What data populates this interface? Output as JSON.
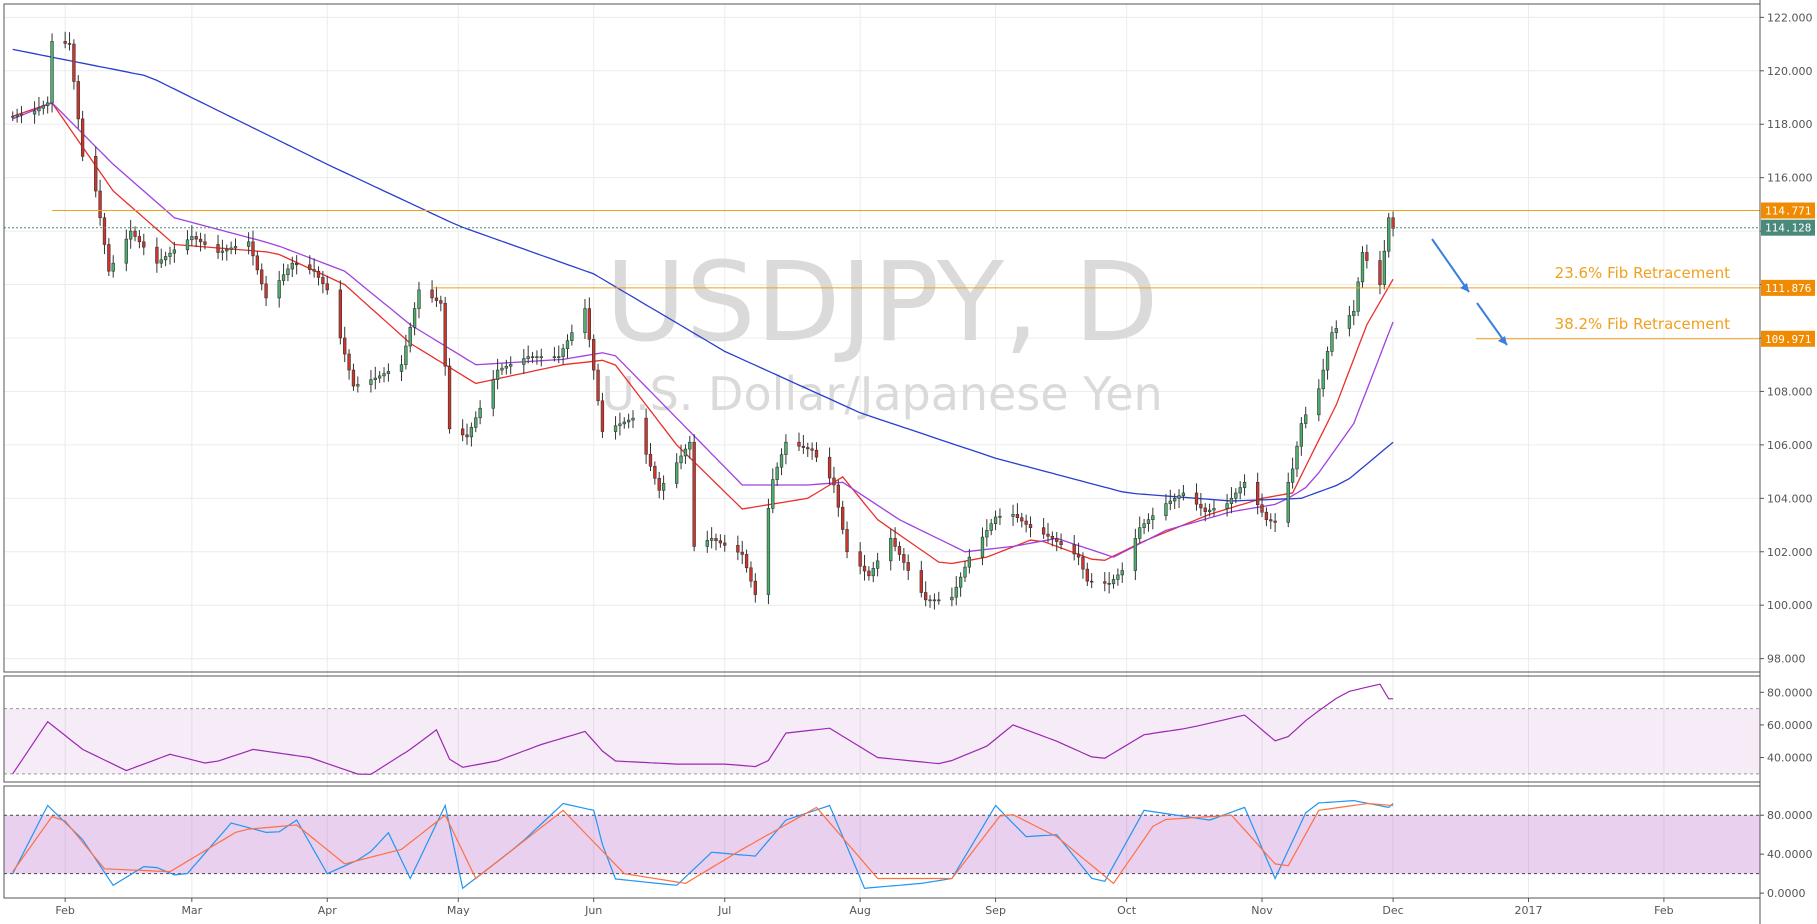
{
  "chart_data": [
    {
      "type": "candlestick",
      "watermark": {
        "symbol": "USDJPY, D",
        "description": "U.S. Dollar/Japanese Yen"
      },
      "ylim": [
        97.5,
        122.5
      ],
      "y_ticks": [
        "122.000",
        "120.000",
        "118.000",
        "116.000",
        "114.000",
        "112.000",
        "110.000",
        "108.000",
        "106.000",
        "104.000",
        "102.000",
        "100.000",
        "98.000"
      ],
      "x_ticks": [
        "Feb",
        "Mar",
        "Apr",
        "May",
        "Jun",
        "Jul",
        "Aug",
        "Sep",
        "Oct",
        "Nov",
        "Dec",
        "2017",
        "Feb"
      ],
      "price_tags": {
        "resistance": "114.771",
        "current": "114.128",
        "fib_23_6": "111.876",
        "fib_38_2": "109.971"
      },
      "levels": [
        {
          "name": "resistance",
          "value": 114.771,
          "label": ""
        },
        {
          "name": "fib_23_6",
          "value": 111.876,
          "label": "23.6% Fib Retracement"
        },
        {
          "name": "fib_38_2",
          "value": 109.971,
          "label": "38.2% Fib Retracement"
        }
      ],
      "close_keys": [
        [
          "2016-01-20",
          118.3
        ],
        [
          "2016-01-25",
          118.5
        ],
        [
          "2016-01-28",
          118.8
        ],
        [
          "2016-01-29",
          121.1
        ],
        [
          "2016-02-02",
          121.0
        ],
        [
          "2016-02-05",
          116.8
        ],
        [
          "2016-02-08",
          115.5
        ],
        [
          "2016-02-11",
          112.5
        ],
        [
          "2016-02-16",
          114.0
        ],
        [
          "2016-02-22",
          112.8
        ],
        [
          "2016-03-01",
          113.8
        ],
        [
          "2016-03-07",
          113.2
        ],
        [
          "2016-03-14",
          113.6
        ],
        [
          "2016-03-18",
          111.5
        ],
        [
          "2016-03-24",
          112.8
        ],
        [
          "2016-03-29",
          112.5
        ],
        [
          "2016-04-01",
          111.8
        ],
        [
          "2016-04-07",
          108.2
        ],
        [
          "2016-04-12",
          108.5
        ],
        [
          "2016-04-18",
          109.0
        ],
        [
          "2016-04-22",
          111.8
        ],
        [
          "2016-04-27",
          111.3
        ],
        [
          "2016-04-29",
          106.6
        ],
        [
          "2016-05-03",
          106.3
        ],
        [
          "2016-05-10",
          108.8
        ],
        [
          "2016-05-17",
          109.3
        ],
        [
          "2016-05-24",
          109.3
        ],
        [
          "2016-05-30",
          111.1
        ],
        [
          "2016-06-03",
          106.5
        ],
        [
          "2016-06-10",
          107.0
        ],
        [
          "2016-06-16",
          104.3
        ],
        [
          "2016-06-23",
          106.1
        ],
        [
          "2016-06-24",
          102.2
        ],
        [
          "2016-06-28",
          102.5
        ],
        [
          "2016-07-05",
          101.9
        ],
        [
          "2016-07-08",
          100.4
        ],
        [
          "2016-07-12",
          104.7
        ],
        [
          "2016-07-15",
          106.1
        ],
        [
          "2016-07-21",
          105.8
        ],
        [
          "2016-07-26",
          104.5
        ],
        [
          "2016-07-29",
          102.0
        ],
        [
          "2016-08-03",
          101.1
        ],
        [
          "2016-08-08",
          102.5
        ],
        [
          "2016-08-12",
          101.3
        ],
        [
          "2016-08-16",
          100.2
        ],
        [
          "2016-08-19",
          100.2
        ],
        [
          "2016-08-22",
          100.3
        ],
        [
          "2016-08-26",
          101.8
        ],
        [
          "2016-09-01",
          103.3
        ],
        [
          "2016-09-05",
          103.4
        ],
        [
          "2016-09-09",
          102.9
        ],
        [
          "2016-09-14",
          102.5
        ],
        [
          "2016-09-20",
          101.8
        ],
        [
          "2016-09-22",
          100.9
        ],
        [
          "2016-09-27",
          100.8
        ],
        [
          "2016-09-30",
          101.3
        ],
        [
          "2016-10-04",
          102.9
        ],
        [
          "2016-10-10",
          103.8
        ],
        [
          "2016-10-14",
          104.2
        ],
        [
          "2016-10-19",
          103.5
        ],
        [
          "2016-10-24",
          103.8
        ],
        [
          "2016-10-28",
          104.6
        ],
        [
          "2016-11-02",
          103.2
        ],
        [
          "2016-11-04",
          103.1
        ],
        [
          "2016-11-08",
          105.1
        ],
        [
          "2016-11-10",
          106.8
        ],
        [
          "2016-11-14",
          108.1
        ],
        [
          "2016-11-17",
          110.2
        ],
        [
          "2016-11-22",
          111.0
        ],
        [
          "2016-11-24",
          113.2
        ],
        [
          "2016-11-28",
          112.0
        ],
        [
          "2016-11-30",
          114.5
        ],
        [
          "2016-12-01",
          114.1
        ]
      ],
      "moving_averages": [
        {
          "name": "ema_fast",
          "color": "#e8302c",
          "keys": [
            [
              "2016-01-20",
              118.3
            ],
            [
              "2016-01-29",
              118.8
            ],
            [
              "2016-02-12",
              115.5
            ],
            [
              "2016-02-26",
              113.5
            ],
            [
              "2016-03-20",
              113.2
            ],
            [
              "2016-04-05",
              112.0
            ],
            [
              "2016-04-20",
              109.8
            ],
            [
              "2016-05-05",
              108.3
            ],
            [
              "2016-05-25",
              109.0
            ],
            [
              "2016-06-05",
              109.2
            ],
            [
              "2016-06-20",
              106.0
            ],
            [
              "2016-07-05",
              103.6
            ],
            [
              "2016-07-20",
              104.0
            ],
            [
              "2016-07-28",
              104.8
            ],
            [
              "2016-08-05",
              103.2
            ],
            [
              "2016-08-20",
              101.5
            ],
            [
              "2016-08-30",
              101.8
            ],
            [
              "2016-09-10",
              102.5
            ],
            [
              "2016-09-25",
              101.6
            ],
            [
              "2016-10-05",
              102.4
            ],
            [
              "2016-10-20",
              103.4
            ],
            [
              "2016-11-01",
              104.0
            ],
            [
              "2016-11-08",
              104.2
            ],
            [
              "2016-11-18",
              107.5
            ],
            [
              "2016-11-25",
              110.5
            ],
            [
              "2016-12-01",
              112.2
            ]
          ]
        },
        {
          "name": "ema_mid",
          "color": "#a040e0",
          "keys": [
            [
              "2016-01-20",
              118.2
            ],
            [
              "2016-01-29",
              118.8
            ],
            [
              "2016-02-12",
              116.5
            ],
            [
              "2016-02-26",
              114.5
            ],
            [
              "2016-03-20",
              113.5
            ],
            [
              "2016-04-05",
              112.5
            ],
            [
              "2016-04-20",
              110.5
            ],
            [
              "2016-05-05",
              109.0
            ],
            [
              "2016-05-25",
              109.2
            ],
            [
              "2016-06-05",
              109.5
            ],
            [
              "2016-06-20",
              107.0
            ],
            [
              "2016-07-05",
              104.5
            ],
            [
              "2016-07-20",
              104.5
            ],
            [
              "2016-07-28",
              104.6
            ],
            [
              "2016-08-10",
              103.2
            ],
            [
              "2016-08-25",
              102.0
            ],
            [
              "2016-09-05",
              102.2
            ],
            [
              "2016-09-15",
              102.5
            ],
            [
              "2016-09-28",
              101.8
            ],
            [
              "2016-10-10",
              102.8
            ],
            [
              "2016-10-25",
              103.5
            ],
            [
              "2016-11-05",
              103.8
            ],
            [
              "2016-11-12",
              104.5
            ],
            [
              "2016-11-22",
              106.8
            ],
            [
              "2016-12-01",
              110.6
            ]
          ]
        },
        {
          "name": "sma_long",
          "color": "#2a3ecf",
          "keys": [
            [
              "2016-01-20",
              120.8
            ],
            [
              "2016-02-20",
              119.8
            ],
            [
              "2016-04-01",
              116.5
            ],
            [
              "2016-05-01",
              114.2
            ],
            [
              "2016-06-01",
              112.4
            ],
            [
              "2016-07-01",
              109.5
            ],
            [
              "2016-08-01",
              107.2
            ],
            [
              "2016-09-01",
              105.5
            ],
            [
              "2016-10-01",
              104.2
            ],
            [
              "2016-10-25",
              103.9
            ],
            [
              "2016-11-10",
              104.0
            ],
            [
              "2016-11-20",
              104.6
            ],
            [
              "2016-12-01",
              106.1
            ]
          ]
        }
      ]
    },
    {
      "type": "line",
      "ylim": [
        25,
        90
      ],
      "y_ticks": [
        "80.0000",
        "60.0000",
        "40.0000"
      ],
      "band": [
        30,
        70
      ],
      "color": "#9c27b0",
      "keys": [
        [
          "2016-01-20",
          30
        ],
        [
          "2016-01-28",
          62
        ],
        [
          "2016-02-05",
          45
        ],
        [
          "2016-02-15",
          32
        ],
        [
          "2016-02-25",
          42
        ],
        [
          "2016-03-05",
          36
        ],
        [
          "2016-03-15",
          45
        ],
        [
          "2016-03-28",
          40
        ],
        [
          "2016-04-10",
          28
        ],
        [
          "2016-04-20",
          45
        ],
        [
          "2016-04-26",
          57
        ],
        [
          "2016-04-30",
          33
        ],
        [
          "2016-05-10",
          38
        ],
        [
          "2016-05-20",
          48
        ],
        [
          "2016-05-30",
          56
        ],
        [
          "2016-06-05",
          38
        ],
        [
          "2016-06-20",
          36
        ],
        [
          "2016-07-01",
          36
        ],
        [
          "2016-07-10",
          34
        ],
        [
          "2016-07-15",
          55
        ],
        [
          "2016-07-25",
          58
        ],
        [
          "2016-08-05",
          40
        ],
        [
          "2016-08-20",
          36
        ],
        [
          "2016-08-30",
          47
        ],
        [
          "2016-09-05",
          60
        ],
        [
          "2016-09-15",
          50
        ],
        [
          "2016-09-25",
          38
        ],
        [
          "2016-10-05",
          54
        ],
        [
          "2016-10-15",
          58
        ],
        [
          "2016-10-28",
          66
        ],
        [
          "2016-11-05",
          48
        ],
        [
          "2016-11-12",
          65
        ],
        [
          "2016-11-20",
          80
        ],
        [
          "2016-11-28",
          85
        ],
        [
          "2016-11-30",
          76
        ],
        [
          "2016-12-01",
          76
        ]
      ]
    },
    {
      "type": "line",
      "ylim": [
        -5,
        110
      ],
      "y_ticks": [
        "80.0000",
        "40.0000",
        "0.0000"
      ],
      "band": [
        20,
        80
      ],
      "series": [
        {
          "name": "k",
          "color": "#2196f3",
          "keys": [
            [
              "2016-01-20",
              20
            ],
            [
              "2016-01-28",
              90
            ],
            [
              "2016-02-05",
              55
            ],
            [
              "2016-02-12",
              8
            ],
            [
              "2016-02-20",
              30
            ],
            [
              "2016-02-28",
              15
            ],
            [
              "2016-03-10",
              72
            ],
            [
              "2016-03-20",
              60
            ],
            [
              "2016-03-25",
              75
            ],
            [
              "2016-04-01",
              20
            ],
            [
              "2016-04-10",
              38
            ],
            [
              "2016-04-15",
              62
            ],
            [
              "2016-04-20",
              15
            ],
            [
              "2016-04-28",
              90
            ],
            [
              "2016-05-02",
              5
            ],
            [
              "2016-05-15",
              50
            ],
            [
              "2016-05-25",
              92
            ],
            [
              "2016-06-01",
              85
            ],
            [
              "2016-06-05",
              15
            ],
            [
              "2016-06-20",
              8
            ],
            [
              "2016-06-28",
              42
            ],
            [
              "2016-07-08",
              38
            ],
            [
              "2016-07-15",
              75
            ],
            [
              "2016-07-25",
              90
            ],
            [
              "2016-08-02",
              5
            ],
            [
              "2016-08-15",
              10
            ],
            [
              "2016-08-22",
              15
            ],
            [
              "2016-09-01",
              90
            ],
            [
              "2016-09-08",
              58
            ],
            [
              "2016-09-15",
              60
            ],
            [
              "2016-09-25",
              4
            ],
            [
              "2016-10-05",
              85
            ],
            [
              "2016-10-20",
              75
            ],
            [
              "2016-10-28",
              88
            ],
            [
              "2016-11-04",
              15
            ],
            [
              "2016-11-12",
              92
            ],
            [
              "2016-11-22",
              95
            ],
            [
              "2016-11-30",
              88
            ],
            [
              "2016-12-01",
              92
            ]
          ]
        },
        {
          "name": "d",
          "color": "#ff7043",
          "keys": [
            [
              "2016-01-20",
              22
            ],
            [
              "2016-01-30",
              85
            ],
            [
              "2016-02-10",
              25
            ],
            [
              "2016-02-25",
              22
            ],
            [
              "2016-03-12",
              65
            ],
            [
              "2016-03-25",
              70
            ],
            [
              "2016-04-05",
              30
            ],
            [
              "2016-04-18",
              45
            ],
            [
              "2016-04-28",
              80
            ],
            [
              "2016-05-05",
              15
            ],
            [
              "2016-05-25",
              85
            ],
            [
              "2016-06-08",
              20
            ],
            [
              "2016-06-22",
              10
            ],
            [
              "2016-07-05",
              45
            ],
            [
              "2016-07-22",
              88
            ],
            [
              "2016-08-05",
              15
            ],
            [
              "2016-08-22",
              15
            ],
            [
              "2016-09-03",
              85
            ],
            [
              "2016-09-15",
              58
            ],
            [
              "2016-09-28",
              10
            ],
            [
              "2016-10-08",
              75
            ],
            [
              "2016-10-25",
              80
            ],
            [
              "2016-11-06",
              20
            ],
            [
              "2016-11-14",
              85
            ],
            [
              "2016-11-25",
              92
            ],
            [
              "2016-12-01",
              90
            ]
          ]
        }
      ]
    }
  ]
}
